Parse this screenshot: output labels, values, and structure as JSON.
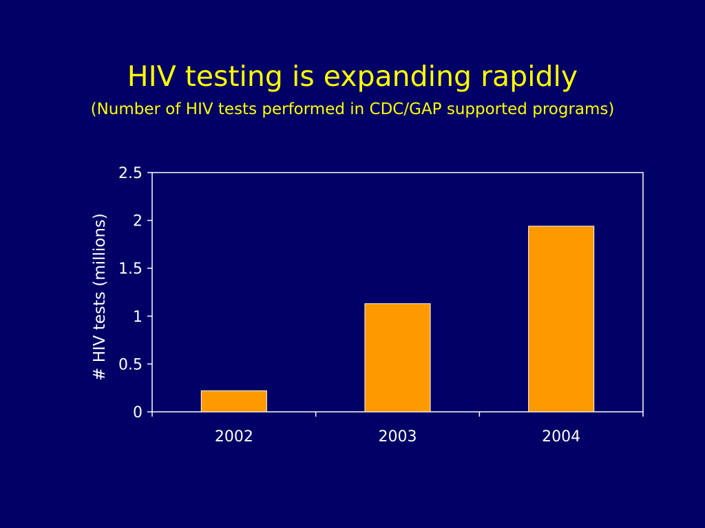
{
  "slide": {
    "title": "HIV testing is expanding rapidly",
    "subtitle": "(Number of HIV tests performed in CDC/GAP supported programs)"
  },
  "colors": {
    "background": "#000066",
    "title": "#FFFF00",
    "bar_fill": "#FF9900",
    "axis": "#FFFFFF",
    "text": "#FFFFFF"
  },
  "chart_data": {
    "type": "bar",
    "categories": [
      "2002",
      "2003",
      "2004"
    ],
    "values": [
      0.22,
      1.13,
      1.94
    ],
    "title": "",
    "xlabel": "",
    "ylabel": "# HIV tests (millions)",
    "ylim": [
      0,
      2.5
    ],
    "yticks": [
      "0",
      "0.5",
      "1",
      "1.5",
      "2",
      "2.5"
    ],
    "grid": false,
    "legend": "none"
  }
}
